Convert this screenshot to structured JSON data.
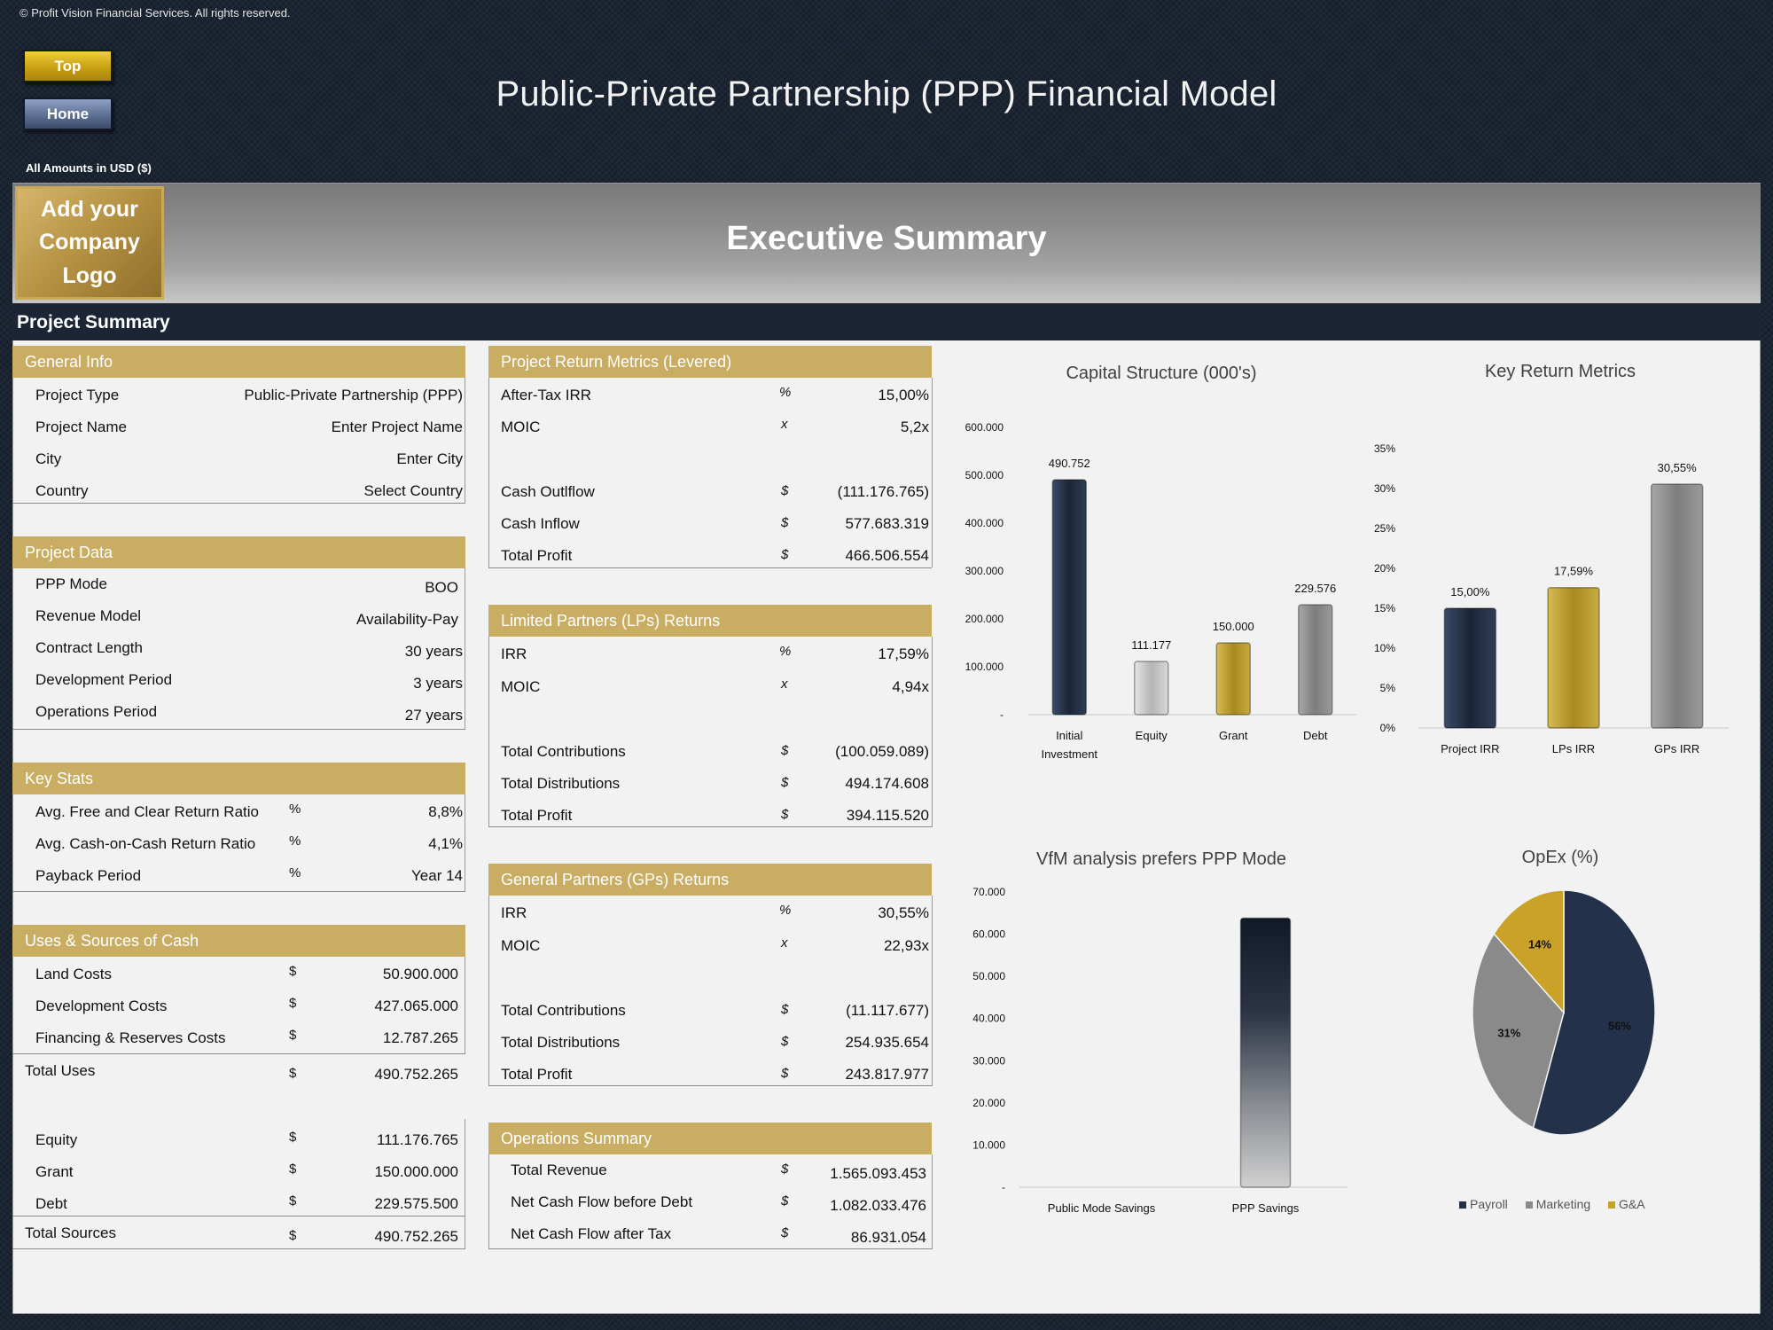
{
  "copyright": "© Profit Vision Financial Services. All rights reserved.",
  "nav": {
    "top": "Top",
    "home": "Home"
  },
  "title": "Public-Private Partnership (PPP) Financial Model",
  "currency_note": "All Amounts in  USD ($)",
  "logo_text_line1": "Add your",
  "logo_text_line2": "Company Logo",
  "page_heading": "Executive Summary",
  "section_heading": "Project Summary",
  "general_info": {
    "title": "General Info",
    "rows": [
      {
        "label": "Project Type",
        "value": "Public-Private Partnership (PPP)"
      },
      {
        "label": "Project Name",
        "value": "Enter Project Name"
      },
      {
        "label": "City",
        "value": "Enter City"
      },
      {
        "label": "Country",
        "value": "Select Country"
      }
    ]
  },
  "project_data": {
    "title": "Project Data",
    "rows": [
      {
        "label": "PPP Mode",
        "value": "BOO"
      },
      {
        "label": "Revenue Model",
        "value": "Availability-Pay"
      },
      {
        "label": "Contract Length",
        "value": "30 years"
      },
      {
        "label": "Development Period",
        "value": "3 years"
      },
      {
        "label": "Operations Period",
        "value": "27 years"
      }
    ]
  },
  "key_stats": {
    "title": "Key Stats",
    "rows": [
      {
        "label": "Avg. Free and Clear Return Ratio",
        "sym": "%",
        "value": "8,8%"
      },
      {
        "label": "Avg. Cash-on-Cash Return Ratio",
        "sym": "%",
        "value": "4,1%"
      },
      {
        "label": "Payback Period",
        "sym": "%",
        "value": "Year 14"
      }
    ]
  },
  "uses_sources": {
    "title": "Uses & Sources of Cash",
    "uses": [
      {
        "label": "Land Costs",
        "sym": "$",
        "value": "50.900.000"
      },
      {
        "label": "Development Costs",
        "sym": "$",
        "value": "427.065.000"
      },
      {
        "label": "Financing & Reserves Costs",
        "sym": "$",
        "value": "12.787.265"
      }
    ],
    "total_uses": {
      "label": "Total Uses",
      "sym": "$",
      "value": "490.752.265"
    },
    "sources": [
      {
        "label": "Equity",
        "sym": "$",
        "value": "111.176.765"
      },
      {
        "label": "Grant",
        "sym": "$",
        "value": "150.000.000"
      },
      {
        "label": "Debt",
        "sym": "$",
        "value": "229.575.500"
      }
    ],
    "total_sources": {
      "label": "Total Sources",
      "sym": "$",
      "value": "490.752.265"
    }
  },
  "project_returns": {
    "title": "Project Return Metrics (Levered)",
    "rows": [
      {
        "label": "After-Tax IRR",
        "sym": "%",
        "value": "15,00%"
      },
      {
        "label": "MOIC",
        "sym": "x",
        "value": "5,2x"
      },
      {
        "label": "Cash Outlflow",
        "sym": "$",
        "value": "(111.176.765)"
      },
      {
        "label": "Cash Inflow",
        "sym": "$",
        "value": "577.683.319"
      },
      {
        "label": "Total Profit",
        "sym": "$",
        "value": "466.506.554"
      }
    ]
  },
  "lp_returns": {
    "title": "Limited Partners (LPs) Returns",
    "rows": [
      {
        "label": "IRR",
        "sym": "%",
        "value": "17,59%"
      },
      {
        "label": "MOIC",
        "sym": "x",
        "value": "4,94x"
      },
      {
        "label": "Total Contributions",
        "sym": "$",
        "value": "(100.059.089)"
      },
      {
        "label": "Total Distributions",
        "sym": "$",
        "value": "494.174.608"
      },
      {
        "label": "Total Profit",
        "sym": "$",
        "value": "394.115.520"
      }
    ]
  },
  "gp_returns": {
    "title": "General Partners (GPs) Returns",
    "rows": [
      {
        "label": "IRR",
        "sym": "%",
        "value": "30,55%"
      },
      {
        "label": "MOIC",
        "sym": "x",
        "value": "22,93x"
      },
      {
        "label": "Total Contributions",
        "sym": "$",
        "value": "(11.117.677)"
      },
      {
        "label": "Total Distributions",
        "sym": "$",
        "value": "254.935.654"
      },
      {
        "label": "Total Profit",
        "sym": "$",
        "value": "243.817.977"
      }
    ]
  },
  "operations": {
    "title": "Operations Summary",
    "rows": [
      {
        "label": "Total Revenue",
        "sym": "$",
        "value": "1.565.093.453"
      },
      {
        "label": "Net Cash Flow before Debt",
        "sym": "$",
        "value": "1.082.033.476"
      },
      {
        "label": "Net Cash Flow after Tax",
        "sym": "$",
        "value": "86.931.054"
      }
    ]
  },
  "colors": {
    "navy": "#1c2536",
    "gold": "#c8ad63",
    "panel": "#f2f2f2"
  },
  "chart_data": [
    {
      "id": "capital",
      "type": "bar",
      "title": "Capital Structure (000's)",
      "categories": [
        "Initial Investment",
        "Equity",
        "Grant",
        "Debt"
      ],
      "values": [
        490752,
        111177,
        150000,
        229576
      ],
      "value_labels": [
        "490.752",
        "111.177",
        "150.000",
        "229.576"
      ],
      "colors": [
        "#222d40",
        "#c8c8c8",
        "#b8982f",
        "#8a8a8a"
      ],
      "ylim": [
        0,
        600000
      ],
      "yticks": [
        "-",
        "100.000",
        "200.000",
        "300.000",
        "400.000",
        "500.000",
        "600.000"
      ]
    },
    {
      "id": "returns",
      "type": "bar",
      "title": "Key Return Metrics",
      "categories": [
        "Project IRR",
        "LPs IRR",
        "GPs IRR"
      ],
      "values": [
        15.0,
        17.59,
        30.55
      ],
      "value_labels": [
        "15,00%",
        "17,59%",
        "30,55%"
      ],
      "colors": [
        "#222d40",
        "#b8982f",
        "#8a8a8a"
      ],
      "ylim": [
        0,
        35
      ],
      "yticks": [
        "0%",
        "5%",
        "10%",
        "15%",
        "20%",
        "25%",
        "30%",
        "35%"
      ]
    },
    {
      "id": "vfm",
      "type": "bar",
      "title": "VfM analysis prefers PPP Mode",
      "categories": [
        "Public Mode Savings",
        "PPP Savings"
      ],
      "values": [
        0,
        63800
      ],
      "ylim": [
        0,
        70000
      ],
      "yticks": [
        "-",
        "10.000",
        "20.000",
        "30.000",
        "40.000",
        "50.000",
        "60.000",
        "70.000"
      ]
    },
    {
      "id": "opex",
      "type": "pie",
      "title": "OpEx (%)",
      "labels": [
        "Payroll",
        "Marketing",
        "G&A"
      ],
      "values": [
        56,
        31,
        14
      ],
      "value_labels": [
        "56%",
        "31%",
        "14%"
      ],
      "colors": [
        "#23314a",
        "#8a8a8a",
        "#c9a227"
      ]
    }
  ]
}
